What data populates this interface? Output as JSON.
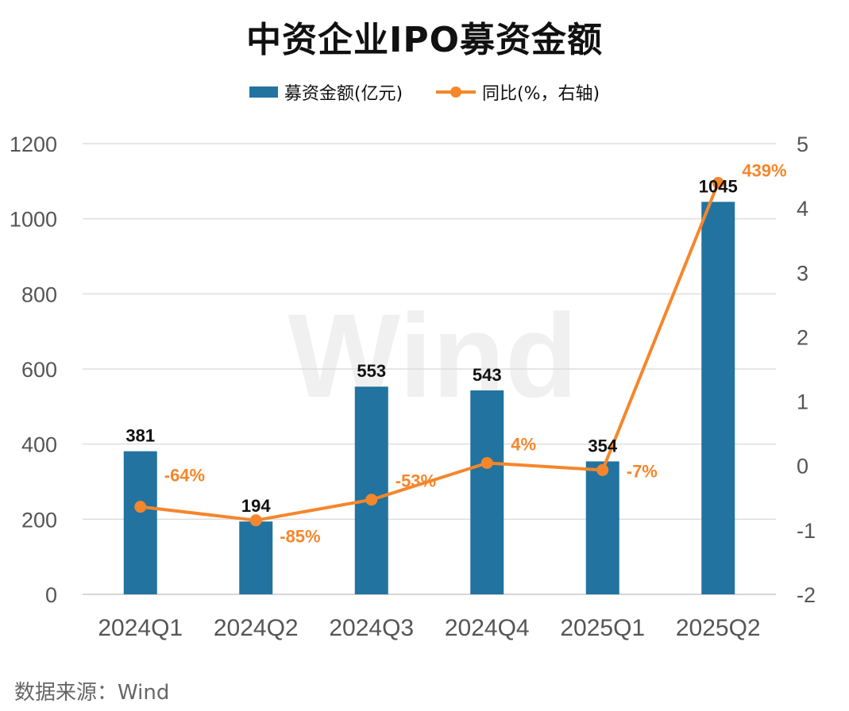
{
  "chart_data": {
    "type": "bar",
    "title": "中资企业IPO募资金额",
    "categories": [
      "2024Q1",
      "2024Q2",
      "2024Q3",
      "2024Q4",
      "2025Q1",
      "2025Q2"
    ],
    "series": [
      {
        "name": "募资金额(亿元)",
        "type": "bar",
        "axis": "left",
        "values": [
          381,
          194,
          553,
          543,
          354,
          1045
        ],
        "labels": [
          "381",
          "194",
          "553",
          "543",
          "354",
          "1045"
        ],
        "color": "#22739f"
      },
      {
        "name": "同比(%，右轴)",
        "type": "line",
        "axis": "right",
        "values": [
          -0.64,
          -0.85,
          -0.53,
          0.04,
          -0.07,
          4.39
        ],
        "labels": [
          "-64%",
          "-85%",
          "-53%",
          "4%",
          "-7%",
          "439%"
        ],
        "color": "#f5862b"
      }
    ],
    "y_left": {
      "min": 0,
      "max": 1200,
      "ticks": [
        "0",
        "200",
        "400",
        "600",
        "800",
        "1000",
        "1200"
      ]
    },
    "y_right": {
      "min": -2,
      "max": 5,
      "ticks": [
        "-2",
        "-1",
        "0",
        "1",
        "2",
        "3",
        "4",
        "5"
      ]
    },
    "grid": true,
    "legend_position": "top",
    "watermark": "Wind",
    "source": "数据来源：Wind"
  }
}
